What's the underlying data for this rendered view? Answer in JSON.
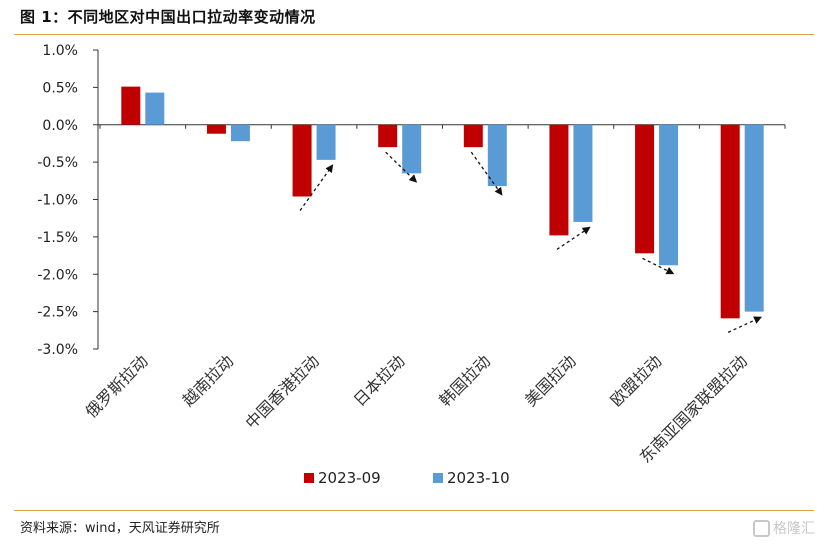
{
  "header": {
    "title": "图 1：不同地区对中国出口拉动率变动情况"
  },
  "footer": {
    "source": "资料来源：wind，天风证券研究所",
    "watermark": "格隆汇"
  },
  "chart_data": {
    "type": "bar",
    "categories": [
      "俄罗斯拉动",
      "越南拉动",
      "中国香港拉动",
      "日本拉动",
      "韩国拉动",
      "美国拉动",
      "欧盟拉动",
      "东南亚国家联盟拉动"
    ],
    "series": [
      {
        "name": "2023-09",
        "color": "#c00000",
        "values": [
          0.51,
          -0.12,
          -0.96,
          -0.3,
          -0.3,
          -1.48,
          -1.72,
          -2.59
        ]
      },
      {
        "name": "2023-10",
        "color": "#5b9bd5",
        "values": [
          0.43,
          -0.22,
          -0.47,
          -0.65,
          -0.82,
          -1.3,
          -1.88,
          -2.5
        ]
      }
    ],
    "yticks": [
      "1.0%",
      "0.5%",
      "0.0%",
      "-0.5%",
      "-1.0%",
      "-1.5%",
      "-2.0%",
      "-2.5%",
      "-3.0%"
    ],
    "ylim": [
      -3.0,
      1.0
    ],
    "xlabel": "",
    "ylabel": "",
    "grid": false,
    "legend": "bottom",
    "annotations": "dashed arrows from 2023-09 bar to 2023-10 bar for 中国香港, 日本, 韩国, 美国, 欧盟, 东南亚国家联盟"
  }
}
